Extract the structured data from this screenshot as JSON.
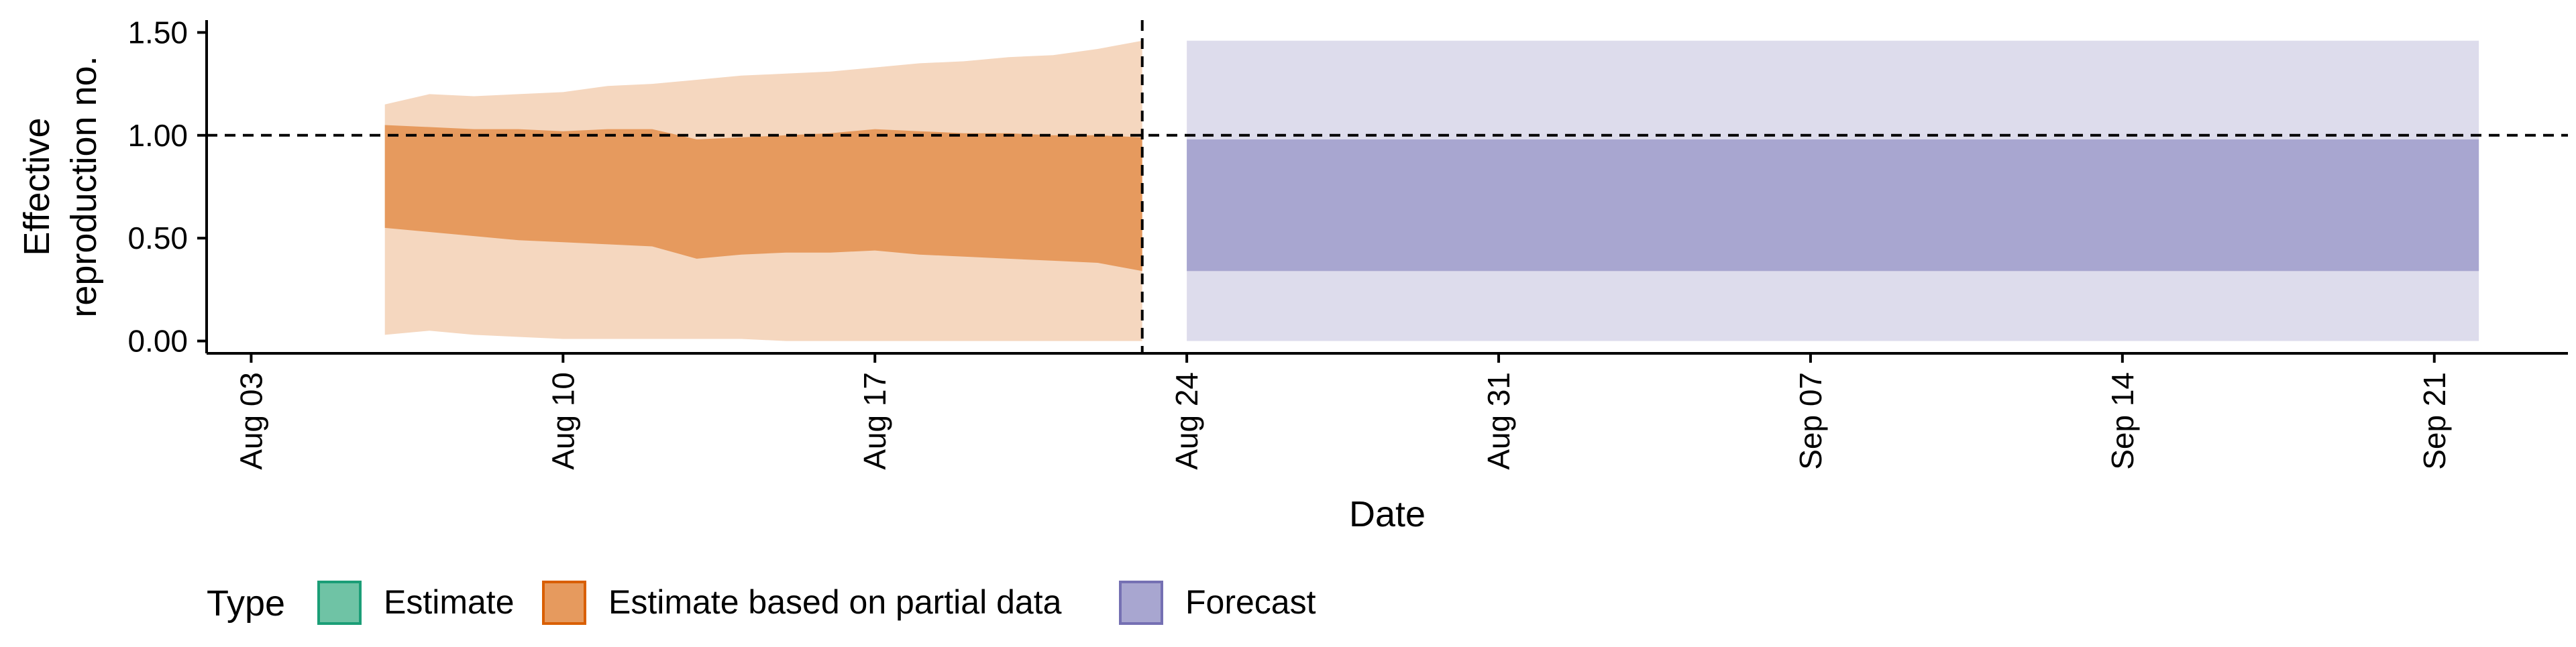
{
  "chart_data": {
    "type": "area",
    "title": "",
    "xlabel": "Date",
    "ylabel_lines": [
      "Effective",
      "reproduction no."
    ],
    "x_ticks": [
      "Aug 03",
      "Aug 10",
      "Aug 17",
      "Aug 24",
      "Aug 31",
      "Sep 07",
      "Sep 14",
      "Sep 21"
    ],
    "y_ticks": [
      "0.00",
      "0.50",
      "1.00",
      "1.50"
    ],
    "xlim": [
      "2020-08-02",
      "2020-09-24"
    ],
    "ylim": [
      -0.06,
      1.56
    ],
    "reference_hline": 1.0,
    "reference_vline": "2020-08-23",
    "grid": false,
    "legend": {
      "title": "Type",
      "position": "bottom-left",
      "entries": [
        {
          "label": "Estimate",
          "fill": "#6fc3a5",
          "stroke": "#1b9e77"
        },
        {
          "label": "Estimate based on partial data",
          "fill": "#e69a5e",
          "stroke": "#d95f02"
        },
        {
          "label": "Forecast",
          "fill": "#a8a6d0",
          "stroke": "#7570b3"
        }
      ]
    },
    "series": [
      {
        "name": "Estimate based on partial data",
        "color_inner": "#e69a5e",
        "color_outer": "#f5d7bf",
        "points": [
          {
            "date": "2020-08-06",
            "lo90": 0.03,
            "lo50": 0.55,
            "hi50": 1.05,
            "hi90": 1.15
          },
          {
            "date": "2020-08-07",
            "lo90": 0.05,
            "lo50": 0.53,
            "hi50": 1.04,
            "hi90": 1.2
          },
          {
            "date": "2020-08-08",
            "lo90": 0.03,
            "lo50": 0.51,
            "hi50": 1.03,
            "hi90": 1.19
          },
          {
            "date": "2020-08-09",
            "lo90": 0.02,
            "lo50": 0.49,
            "hi50": 1.03,
            "hi90": 1.2
          },
          {
            "date": "2020-08-10",
            "lo90": 0.01,
            "lo50": 0.48,
            "hi50": 1.02,
            "hi90": 1.21
          },
          {
            "date": "2020-08-11",
            "lo90": 0.01,
            "lo50": 0.47,
            "hi50": 1.03,
            "hi90": 1.24
          },
          {
            "date": "2020-08-12",
            "lo90": 0.01,
            "lo50": 0.46,
            "hi50": 1.03,
            "hi90": 1.25
          },
          {
            "date": "2020-08-13",
            "lo90": 0.01,
            "lo50": 0.4,
            "hi50": 0.98,
            "hi90": 1.27
          },
          {
            "date": "2020-08-14",
            "lo90": 0.01,
            "lo50": 0.42,
            "hi50": 0.99,
            "hi90": 1.29
          },
          {
            "date": "2020-08-15",
            "lo90": 0.0,
            "lo50": 0.43,
            "hi50": 1.0,
            "hi90": 1.3
          },
          {
            "date": "2020-08-16",
            "lo90": 0.0,
            "lo50": 0.43,
            "hi50": 1.01,
            "hi90": 1.31
          },
          {
            "date": "2020-08-17",
            "lo90": 0.0,
            "lo50": 0.44,
            "hi50": 1.03,
            "hi90": 1.33
          },
          {
            "date": "2020-08-18",
            "lo90": 0.0,
            "lo50": 0.42,
            "hi50": 1.02,
            "hi90": 1.35
          },
          {
            "date": "2020-08-19",
            "lo90": 0.0,
            "lo50": 0.41,
            "hi50": 1.01,
            "hi90": 1.36
          },
          {
            "date": "2020-08-20",
            "lo90": 0.0,
            "lo50": 0.4,
            "hi50": 1.01,
            "hi90": 1.38
          },
          {
            "date": "2020-08-21",
            "lo90": 0.0,
            "lo50": 0.39,
            "hi50": 1.0,
            "hi90": 1.39
          },
          {
            "date": "2020-08-22",
            "lo90": 0.0,
            "lo50": 0.38,
            "hi50": 1.0,
            "hi90": 1.42
          },
          {
            "date": "2020-08-23",
            "lo90": 0.0,
            "lo50": 0.34,
            "hi50": 0.99,
            "hi90": 1.46
          }
        ]
      },
      {
        "name": "Forecast",
        "color_inner": "#a8a6d0",
        "color_outer": "#dddcec",
        "points": [
          {
            "date": "2020-08-24",
            "lo90": 0.0,
            "lo50": 0.34,
            "hi50": 0.98,
            "hi90": 1.46
          },
          {
            "date": "2020-09-22",
            "lo90": 0.0,
            "lo50": 0.34,
            "hi50": 0.98,
            "hi90": 1.46
          }
        ]
      }
    ]
  }
}
